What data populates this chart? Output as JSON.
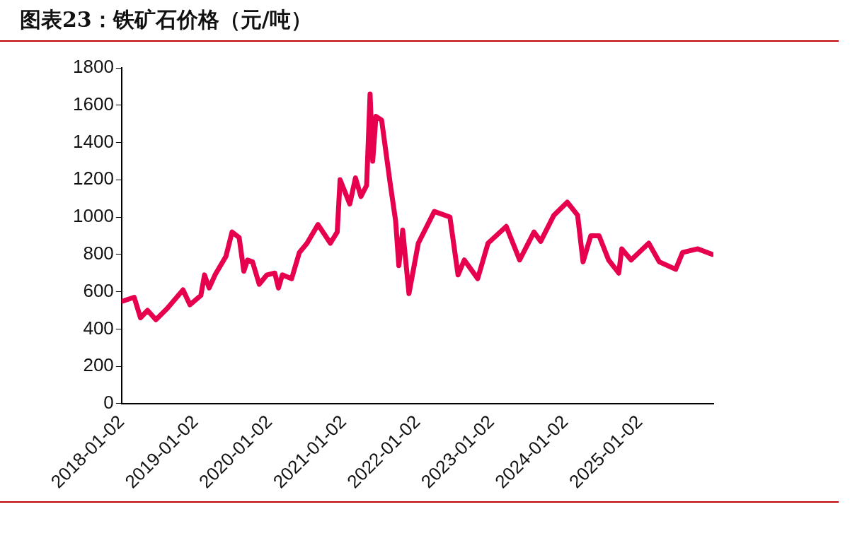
{
  "chart_data": {
    "type": "line",
    "title": "图表23：铁矿石价格（元/吨）",
    "x": [
      "2018-01-09",
      "2018-03-05",
      "2018-04-05",
      "2018-05-10",
      "2018-06-20",
      "2018-08-15",
      "2018-11-01",
      "2018-12-05",
      "2019-01-28",
      "2019-02-15",
      "2019-03-10",
      "2019-04-08",
      "2019-06-01",
      "2019-07-01",
      "2019-08-05",
      "2019-08-28",
      "2019-09-15",
      "2019-10-10",
      "2019-11-12",
      "2019-12-20",
      "2020-01-28",
      "2020-02-15",
      "2020-03-05",
      "2020-04-20",
      "2020-05-28",
      "2020-07-05",
      "2020-08-28",
      "2020-10-28",
      "2020-12-01",
      "2020-12-15",
      "2021-02-01",
      "2021-03-01",
      "2021-03-28",
      "2021-04-25",
      "2021-05-12",
      "2021-05-25",
      "2021-06-10",
      "2021-07-08",
      "2021-08-18",
      "2021-09-15",
      "2021-10-01",
      "2021-10-20",
      "2021-11-20",
      "2022-01-05",
      "2022-03-25",
      "2022-06-10",
      "2022-07-20",
      "2022-08-20",
      "2022-10-25",
      "2022-12-15",
      "2023-03-15",
      "2023-05-20",
      "2023-07-30",
      "2023-09-01",
      "2023-11-05",
      "2024-01-10",
      "2024-03-01",
      "2024-03-28",
      "2024-05-05",
      "2024-06-15",
      "2024-08-01",
      "2024-09-20",
      "2024-10-05",
      "2024-11-20",
      "2025-02-15",
      "2025-04-08",
      "2025-06-28",
      "2025-08-01",
      "2025-10-15",
      "2025-12-25"
    ],
    "values": [
      550,
      570,
      460,
      500,
      450,
      510,
      610,
      530,
      580,
      690,
      620,
      690,
      790,
      920,
      890,
      710,
      770,
      760,
      640,
      690,
      700,
      620,
      690,
      670,
      810,
      860,
      960,
      860,
      920,
      1200,
      1070,
      1210,
      1110,
      1170,
      1660,
      1300,
      1540,
      1520,
      1190,
      980,
      740,
      930,
      590,
      860,
      1030,
      1000,
      690,
      770,
      670,
      860,
      950,
      770,
      920,
      870,
      1010,
      1080,
      1010,
      760,
      900,
      900,
      770,
      700,
      830,
      770,
      860,
      760,
      720,
      810,
      830,
      800
    ],
    "color": "#e6004e",
    "xlim": [
      "2018-01-02",
      "2025-12-31"
    ],
    "xticks": [
      "2018-01-02",
      "2019-01-02",
      "2020-01-02",
      "2021-01-02",
      "2022-01-02",
      "2023-01-02",
      "2024-01-02",
      "2025-01-02"
    ],
    "ylim": [
      0,
      1800
    ],
    "yticks": [
      0,
      200,
      400,
      600,
      800,
      1000,
      1200,
      1400,
      1600,
      1800
    ],
    "grid": false,
    "legend": false,
    "marker": "none",
    "line_style": "solid"
  }
}
